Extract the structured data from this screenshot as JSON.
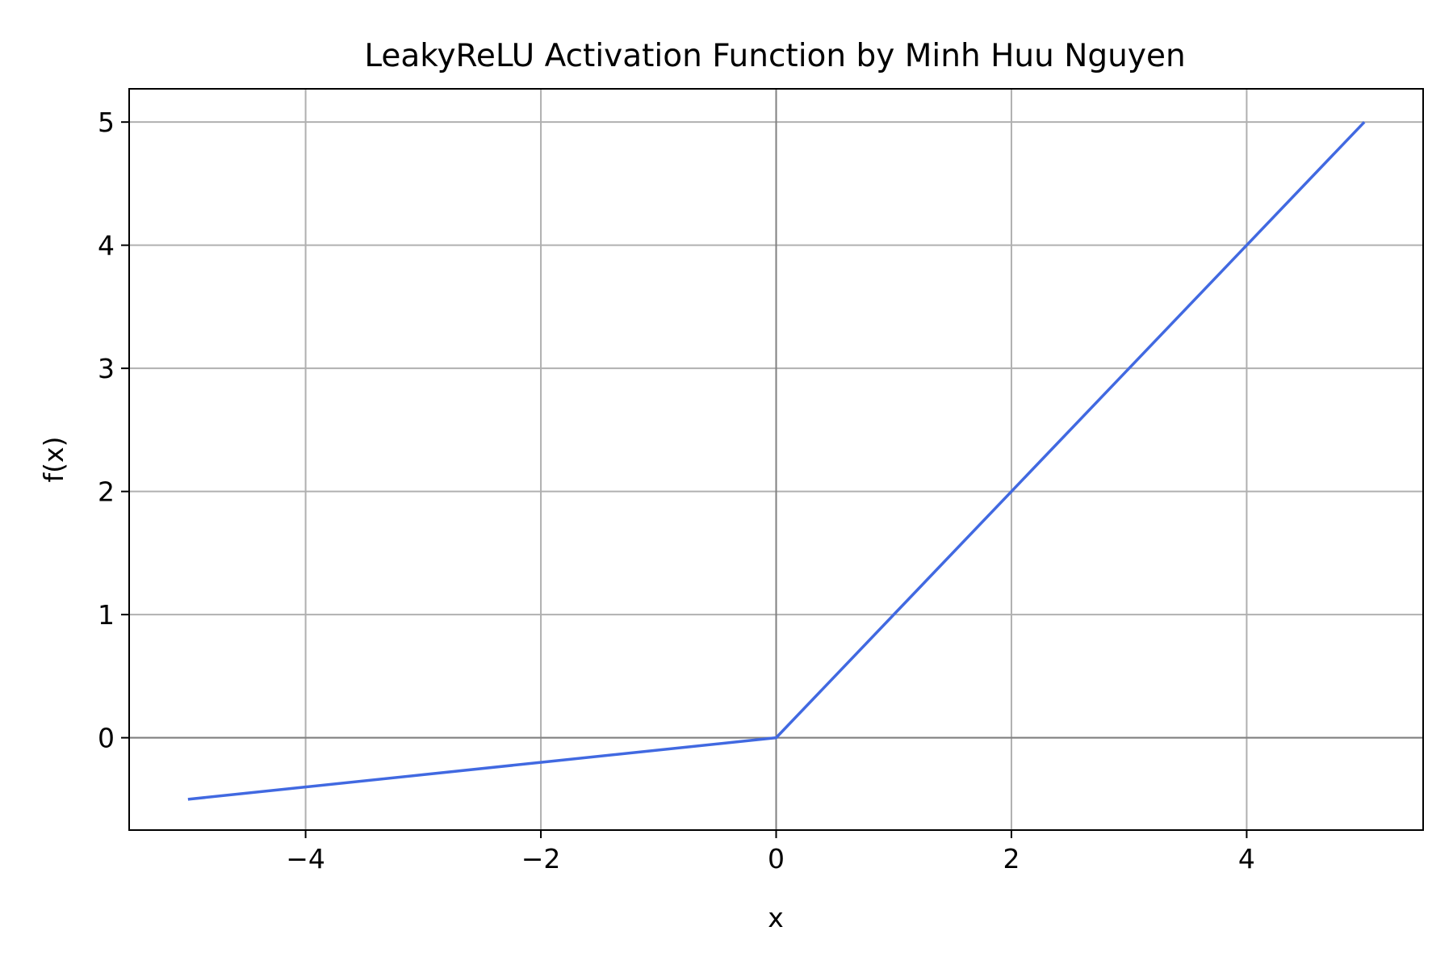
{
  "chart_data": {
    "type": "line",
    "title": "LeakyReLU Activation Function by Minh Huu Nguyen",
    "xlabel": "x",
    "ylabel": "f(x)",
    "xlim": [
      -5.5,
      5.5
    ],
    "ylim": [
      -0.75,
      5.27
    ],
    "x_ticks": [
      {
        "value": -4,
        "label": "−4"
      },
      {
        "value": -2,
        "label": "−2"
      },
      {
        "value": 0,
        "label": "0"
      },
      {
        "value": 2,
        "label": "2"
      },
      {
        "value": 4,
        "label": "4"
      }
    ],
    "y_ticks": [
      {
        "value": 0,
        "label": "0"
      },
      {
        "value": 1,
        "label": "1"
      },
      {
        "value": 2,
        "label": "2"
      },
      {
        "value": 3,
        "label": "3"
      },
      {
        "value": 4,
        "label": "4"
      },
      {
        "value": 5,
        "label": "5"
      }
    ],
    "grid": true,
    "zero_lines": true,
    "series": [
      {
        "color": "#4169e1",
        "x": [
          -5,
          -4,
          -3,
          -2,
          -1,
          0,
          1,
          2,
          3,
          4,
          5
        ],
        "y": [
          -0.5,
          -0.4,
          -0.3,
          -0.2,
          -0.1,
          0,
          1,
          2,
          3,
          4,
          5
        ]
      }
    ]
  }
}
